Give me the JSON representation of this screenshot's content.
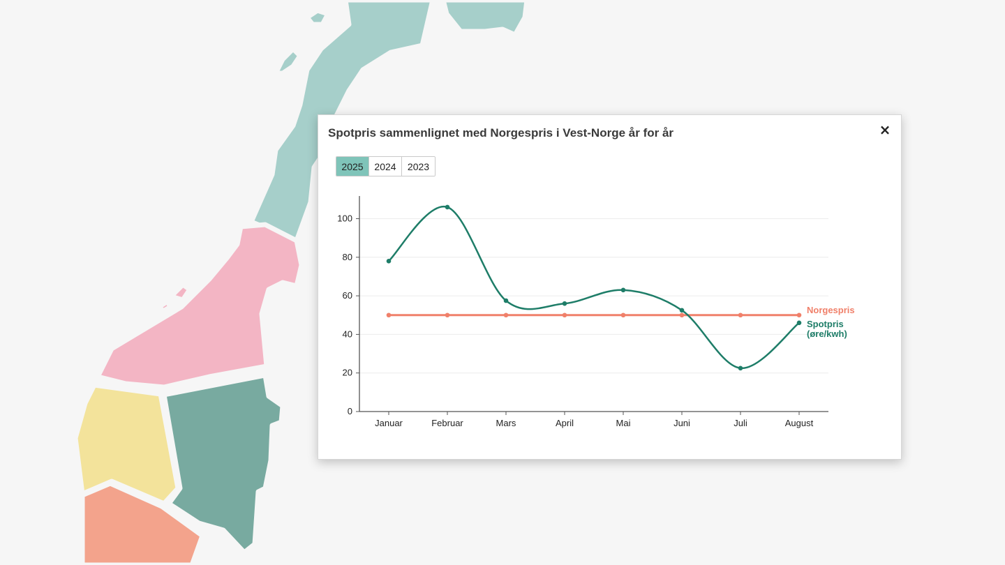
{
  "modal": {
    "title": "Spotpris sammenlignet med Norgespris i Vest-Norge år for år",
    "close_label": "×",
    "year_tabs": [
      {
        "label": "2025",
        "active": true
      },
      {
        "label": "2024",
        "active": false
      },
      {
        "label": "2023",
        "active": false
      }
    ]
  },
  "map": {
    "colors": {
      "north": "#a6cfca",
      "mid": "#f3b5c4",
      "west": "#f3e39b",
      "east": "#78aaa0",
      "south": "#f3a38c",
      "background": "#f6f6f6"
    }
  },
  "chart_data": {
    "type": "line",
    "title": "",
    "xlabel": "",
    "ylabel": "",
    "categories": [
      "Januar",
      "Februar",
      "Mars",
      "April",
      "Mai",
      "Juni",
      "Juli",
      "August"
    ],
    "ylim": [
      0,
      110
    ],
    "yticks": [
      0,
      20,
      40,
      60,
      80,
      100
    ],
    "grid": true,
    "series": [
      {
        "name": "Norgespris",
        "color": "#f0806a",
        "values": [
          50,
          50,
          50,
          50,
          50,
          50,
          50,
          50
        ]
      },
      {
        "name": "Spotpris",
        "name_line2": "(øre/kwh)",
        "color": "#1e7d68",
        "values": [
          78,
          106,
          57.5,
          56,
          63,
          52.5,
          22.5,
          46
        ]
      }
    ]
  }
}
